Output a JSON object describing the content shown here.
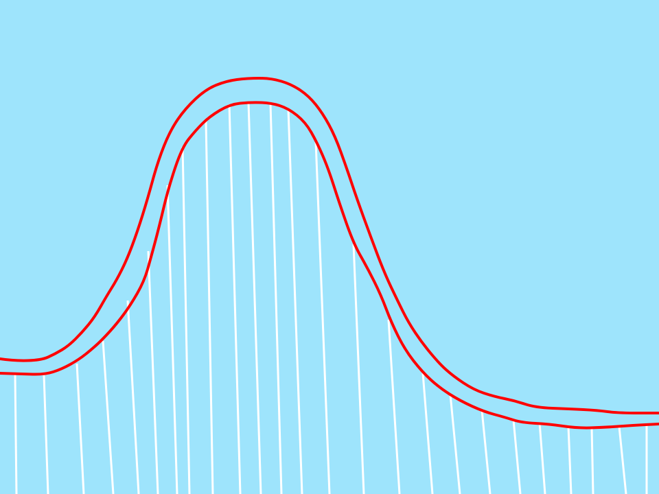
{
  "colors": {
    "background": "#9ee4fc",
    "outline": "#ff0000",
    "stripes": "#ffffff"
  },
  "scene": {
    "kind": "hand-drawn-hill",
    "outline_count": 2,
    "stripe_count": 28
  }
}
